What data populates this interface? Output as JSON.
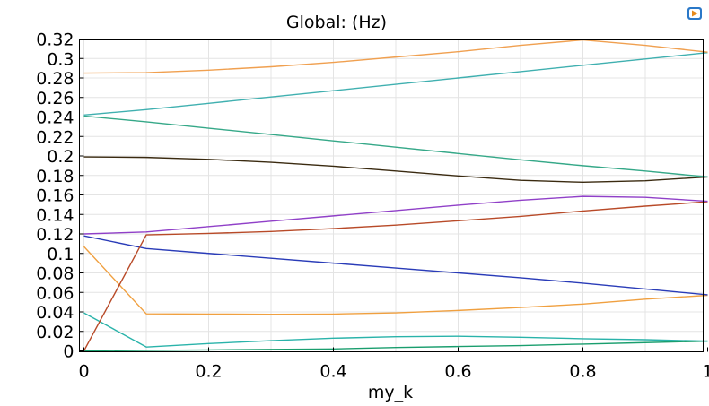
{
  "chart_data": {
    "type": "line",
    "title": "Global:  (Hz)",
    "xlabel": "my_k",
    "ylabel": "",
    "xlim": [
      0,
      1
    ],
    "ylim": [
      0,
      0.32
    ],
    "xticks": [
      0,
      0.2,
      0.4,
      0.6,
      0.8,
      1
    ],
    "xtick_labels": [
      "0",
      "0.2",
      "0.4",
      "0.6",
      "0.8",
      "1"
    ],
    "yticks": [
      0,
      0.02,
      0.04,
      0.06,
      0.08,
      0.1,
      0.12,
      0.14,
      0.16,
      0.18,
      0.2,
      0.22,
      0.24,
      0.26,
      0.28,
      0.3,
      0.32
    ],
    "ytick_labels": [
      "0",
      "0.02",
      "0.04",
      "0.06",
      "0.08",
      "0.1",
      "0.12",
      "0.14",
      "0.16",
      "0.18",
      "0.2",
      "0.22",
      "0.24",
      "0.26",
      "0.28",
      "0.3",
      "0.32"
    ],
    "xminor_step": 0.1,
    "grid": true,
    "x": [
      0,
      0.1,
      0.2,
      0.3,
      0.4,
      0.5,
      0.6,
      0.7,
      0.8,
      0.9,
      1.0
    ],
    "series": [
      {
        "color": "#1a9e6e",
        "values": [
          0.0,
          0.0005,
          0.001,
          0.0015,
          0.002,
          0.0035,
          0.0045,
          0.0055,
          0.007,
          0.0085,
          0.01
        ]
      },
      {
        "color": "#2ab3aa",
        "values": [
          0.039,
          0.004,
          0.0075,
          0.0105,
          0.013,
          0.0145,
          0.015,
          0.014,
          0.0125,
          0.0115,
          0.01
        ]
      },
      {
        "color": "#f0a040",
        "values": [
          0.107,
          0.038,
          0.0378,
          0.0375,
          0.0378,
          0.039,
          0.0415,
          0.0445,
          0.048,
          0.053,
          0.057
        ]
      },
      {
        "color": "#2a3cb8",
        "values": [
          0.118,
          0.105,
          0.1,
          0.095,
          0.09,
          0.085,
          0.08,
          0.075,
          0.0695,
          0.0635,
          0.0575
        ]
      },
      {
        "color": "#b84a28",
        "values": [
          0.0,
          0.119,
          0.1205,
          0.1225,
          0.1255,
          0.129,
          0.1335,
          0.138,
          0.1435,
          0.1485,
          0.153
        ]
      },
      {
        "color": "#9040c8",
        "values": [
          0.12,
          0.122,
          0.1275,
          0.133,
          0.1385,
          0.144,
          0.1495,
          0.1545,
          0.1585,
          0.1575,
          0.1535
        ]
      },
      {
        "color": "#3a2a10",
        "values": [
          0.199,
          0.1985,
          0.1965,
          0.1935,
          0.1895,
          0.1845,
          0.1795,
          0.175,
          0.173,
          0.1745,
          0.1785
        ]
      },
      {
        "color": "#35a888",
        "values": [
          0.241,
          0.235,
          0.2285,
          0.222,
          0.2155,
          0.209,
          0.2025,
          0.196,
          0.19,
          0.1845,
          0.1785
        ]
      },
      {
        "color": "#40b0b0",
        "values": [
          0.242,
          0.2475,
          0.254,
          0.2605,
          0.267,
          0.2735,
          0.28,
          0.2865,
          0.293,
          0.2995,
          0.306
        ]
      },
      {
        "color": "#f0a050",
        "values": [
          0.285,
          0.2855,
          0.288,
          0.2915,
          0.296,
          0.3015,
          0.307,
          0.3135,
          0.319,
          0.3135,
          0.3065
        ]
      }
    ]
  }
}
